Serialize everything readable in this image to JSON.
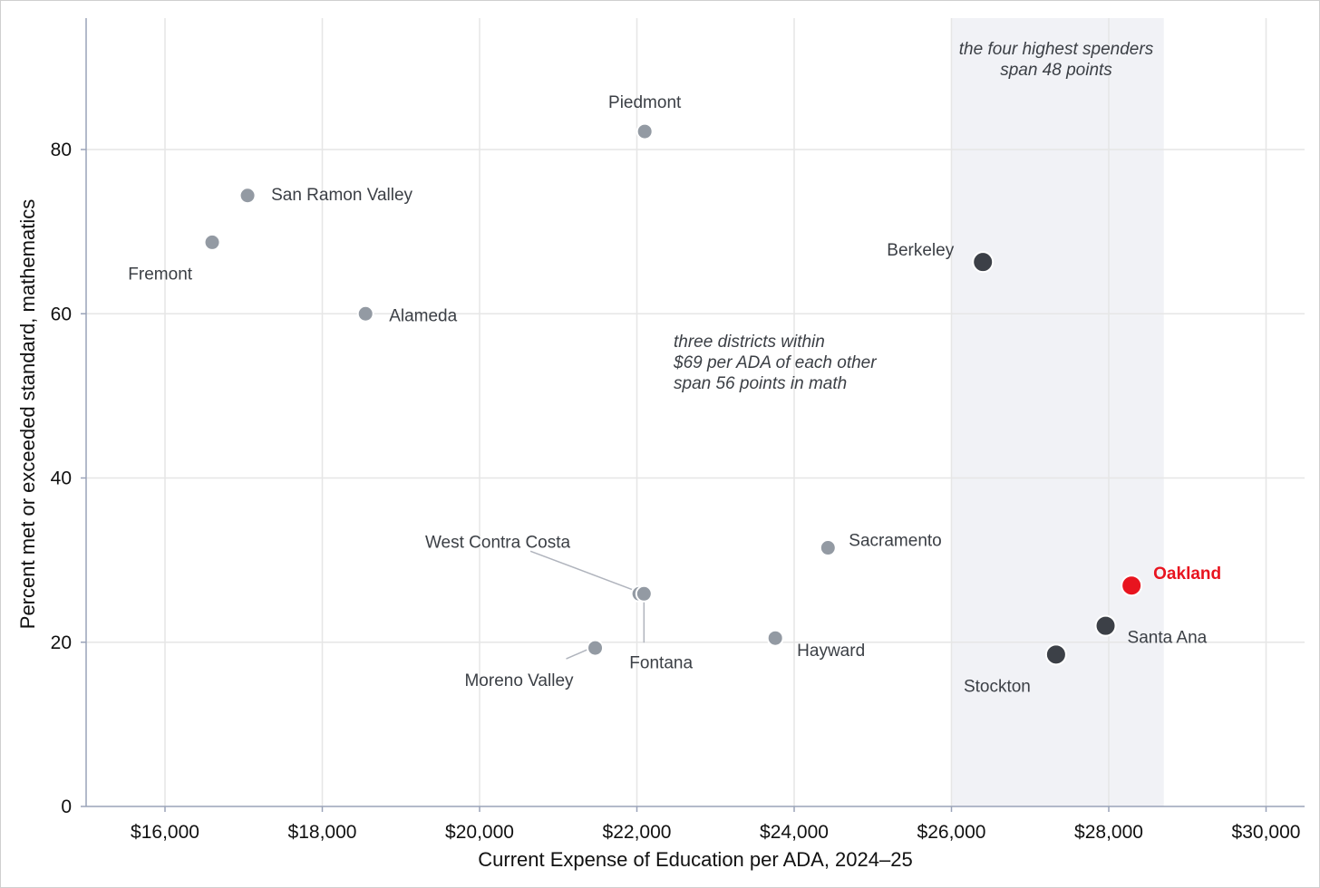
{
  "chart_data": {
    "type": "scatter",
    "title": "",
    "xlabel": "Current Expense of Education per ADA, 2024–25",
    "ylabel": "Percent met or exceeded standard, mathematics",
    "xlim": [
      15000,
      30500
    ],
    "ylim": [
      0,
      95
    ],
    "x_ticks": [
      16000,
      18000,
      20000,
      22000,
      24000,
      26000,
      28000,
      30000
    ],
    "x_tick_labels": [
      "$16,000",
      "$18,000",
      "$20,000",
      "$22,000",
      "$24,000",
      "$26,000",
      "$28,000",
      "$30,000"
    ],
    "y_ticks": [
      0,
      20,
      40,
      60,
      80
    ],
    "y_tick_labels": [
      "0",
      "20",
      "40",
      "60",
      "80"
    ],
    "grid": true,
    "highlight_band": {
      "x_range": [
        26000,
        28700
      ],
      "color": "#f1f2f6"
    },
    "colors": {
      "regular": "#939aa3",
      "top_spender": "#3c4047",
      "highlight": "#e8141f",
      "leader": "#b0b4bd"
    },
    "points": [
      {
        "name": "Piedmont",
        "x": 22100,
        "y": 82.2,
        "group": "regular"
      },
      {
        "name": "San Ramon Valley",
        "x": 17050,
        "y": 74.4,
        "group": "regular"
      },
      {
        "name": "Fremont",
        "x": 16600,
        "y": 68.7,
        "group": "regular"
      },
      {
        "name": "Alameda",
        "x": 18550,
        "y": 60.0,
        "group": "regular"
      },
      {
        "name": "Berkeley",
        "x": 26400,
        "y": 66.3,
        "group": "top_spender"
      },
      {
        "name": "Sacramento",
        "x": 24430,
        "y": 31.5,
        "group": "regular"
      },
      {
        "name": "West Contra Costa",
        "x": 22030,
        "y": 25.9,
        "group": "regular"
      },
      {
        "name": "Fontana",
        "x": 22090,
        "y": 25.9,
        "group": "regular"
      },
      {
        "name": "Moreno Valley",
        "x": 21470,
        "y": 19.3,
        "group": "regular"
      },
      {
        "name": "Hayward",
        "x": 23760,
        "y": 20.5,
        "group": "regular"
      },
      {
        "name": "Oakland",
        "x": 28290,
        "y": 26.9,
        "group": "highlight"
      },
      {
        "name": "Santa Ana",
        "x": 27960,
        "y": 22.0,
        "group": "top_spender"
      },
      {
        "name": "Stockton",
        "x": 27330,
        "y": 18.5,
        "group": "top_spender"
      }
    ],
    "annotations": [
      {
        "lines": [
          "the four highest spenders",
          "span 48 points"
        ]
      },
      {
        "lines": [
          "three districts within",
          "$69 per ADA of each other",
          "span 56 points in math"
        ]
      }
    ]
  }
}
